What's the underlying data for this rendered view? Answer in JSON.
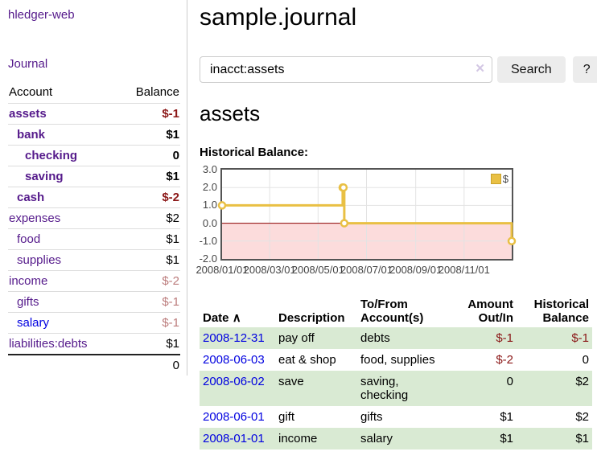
{
  "app": {
    "title": "hledger-web"
  },
  "sidebar": {
    "journal_link": "Journal",
    "accounts_header": {
      "account": "Account",
      "balance": "Balance"
    },
    "accounts": [
      {
        "name": "assets",
        "depth": 1,
        "bold": true,
        "balance": "$-1",
        "balance_style": "neg"
      },
      {
        "name": "bank",
        "depth": 2,
        "bold": true,
        "balance": "$1",
        "balance_style": "pos"
      },
      {
        "name": "checking",
        "depth": 3,
        "bold": true,
        "balance": "0",
        "balance_style": "pos"
      },
      {
        "name": "saving",
        "depth": 3,
        "bold": true,
        "balance": "$1",
        "balance_style": "pos"
      },
      {
        "name": "cash",
        "depth": 2,
        "bold": true,
        "balance": "$-2",
        "balance_style": "neg"
      },
      {
        "name": "expenses",
        "depth": 1,
        "bold": false,
        "balance": "$2",
        "balance_style": "pos"
      },
      {
        "name": "food",
        "depth": 2,
        "bold": false,
        "balance": "$1",
        "balance_style": "pos"
      },
      {
        "name": "supplies",
        "depth": 2,
        "bold": false,
        "balance": "$1",
        "balance_style": "pos"
      },
      {
        "name": "income",
        "depth": 1,
        "bold": false,
        "balance": "$-2",
        "balance_style": "neg-dim"
      },
      {
        "name": "gifts",
        "depth": 2,
        "bold": false,
        "balance": "$-1",
        "balance_style": "neg-dim"
      },
      {
        "name": "salary",
        "depth": 2,
        "bold": false,
        "link_style": "unvisited",
        "balance": "$-1",
        "balance_style": "neg-dim"
      },
      {
        "name": "liabilities:debts",
        "depth": 1,
        "bold": false,
        "balance": "$1",
        "balance_style": "pos"
      }
    ],
    "total": "0"
  },
  "header": {
    "title": "sample.journal"
  },
  "search": {
    "value": "inacct:assets",
    "clear_icon": "✕",
    "button": "Search",
    "help_button": "?"
  },
  "main": {
    "account_title": "assets",
    "chart_label": "Historical Balance:"
  },
  "chart_data": {
    "type": "line",
    "step": true,
    "title": "Historical Balance",
    "series": [
      {
        "name": "$",
        "color": "#e9c044",
        "points": [
          [
            "2008-01-01",
            1
          ],
          [
            "2008-06-01",
            2
          ],
          [
            "2008-06-02",
            2
          ],
          [
            "2008-06-03",
            0
          ],
          [
            "2008-12-31",
            -1
          ]
        ]
      }
    ],
    "xlim": [
      "2008-01-01",
      "2008-12-31"
    ],
    "ylim": [
      -2,
      3
    ],
    "x_ticks": [
      "2008/01/01",
      "2008/03/01",
      "2008/05/01",
      "2008/07/01",
      "2008/09/01",
      "2008/11/01"
    ],
    "y_ticks": [
      3,
      2,
      1,
      0,
      -1,
      -2
    ],
    "y_tick_labels": [
      "3.0",
      "2.0",
      "1.0",
      "0.0",
      "-1.0",
      "-2.0"
    ],
    "legend_position": "top-right",
    "grid": true,
    "negative_fill": "#fcdcdc",
    "zero_line_color": "#8b0000",
    "grid_color": "#e3e3e3",
    "border_color": "#545454"
  },
  "register": {
    "headers": {
      "date": "Date",
      "sort_icon": "∧",
      "description": "Description",
      "accounts": "To/From Account(s)",
      "amount": "Amount Out/In",
      "balance": "Historical Balance"
    },
    "rows": [
      {
        "date": "2008-12-31",
        "description": "pay off",
        "accounts": "debts",
        "amount": "$-1",
        "amount_neg": true,
        "balance": "$-1",
        "balance_neg": true
      },
      {
        "date": "2008-06-03",
        "description": "eat & shop",
        "accounts": "food, supplies",
        "amount": "$-2",
        "amount_neg": true,
        "balance": "0",
        "balance_neg": false
      },
      {
        "date": "2008-06-02",
        "description": "save",
        "accounts": "saving, checking",
        "amount": "0",
        "amount_neg": false,
        "balance": "$2",
        "balance_neg": false
      },
      {
        "date": "2008-06-01",
        "description": "gift",
        "accounts": "gifts",
        "amount": "$1",
        "amount_neg": false,
        "balance": "$2",
        "balance_neg": false
      },
      {
        "date": "2008-01-01",
        "description": "income",
        "accounts": "salary",
        "amount": "$1",
        "amount_neg": false,
        "balance": "$1",
        "balance_neg": false
      }
    ]
  },
  "colors": {
    "link_visited": "#551a8b",
    "link_unvisited": "#0000e0",
    "negative": "#8b1717",
    "negative_dim": "#bb7b7b",
    "zebra_green": "#d9ead3",
    "series_gold": "#e9c044"
  }
}
